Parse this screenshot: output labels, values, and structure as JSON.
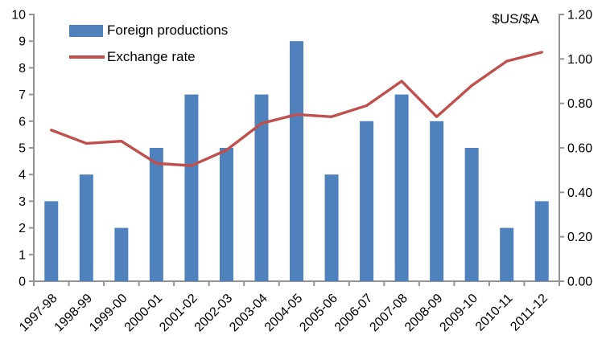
{
  "chart": {
    "legend": {
      "bar_label": "Foreign productions",
      "line_label": "Exchange rate"
    },
    "right_axis_unit": "$US/$A"
  },
  "chart_data": {
    "type": "bar+line",
    "title": "",
    "xlabel": "",
    "ylabel_left": "",
    "ylabel_right": "$US/$A",
    "grid": false,
    "legend_position": "top-left",
    "categories": [
      "1997-98",
      "1998-99",
      "1999-00",
      "2000-01",
      "2001-02",
      "2002-03",
      "2003-04",
      "2004-05",
      "2005-06",
      "2006-07",
      "2007-08",
      "2008-09",
      "2009-10",
      "2010-11",
      "2011-12"
    ],
    "series": [
      {
        "name": "Foreign productions",
        "type": "bar",
        "axis": "left",
        "color": "#4F81BD",
        "values": [
          3,
          4,
          2,
          5,
          7,
          5,
          7,
          9,
          4,
          6,
          7,
          6,
          5,
          2,
          3
        ]
      },
      {
        "name": "Exchange rate",
        "type": "line",
        "axis": "right",
        "color": "#C0504D",
        "values": [
          0.68,
          0.62,
          0.63,
          0.53,
          0.52,
          0.59,
          0.71,
          0.75,
          0.74,
          0.79,
          0.9,
          0.74,
          0.88,
          0.99,
          1.03
        ]
      }
    ],
    "left_axis": {
      "min": 0,
      "max": 10,
      "step": 1,
      "tick_labels": [
        "0",
        "1",
        "2",
        "3",
        "4",
        "5",
        "6",
        "7",
        "8",
        "9",
        "10"
      ]
    },
    "right_axis": {
      "min": 0,
      "max": 1.2,
      "step": 0.2,
      "tick_labels": [
        "0.00",
        "0.20",
        "0.40",
        "0.60",
        "0.80",
        "1.00",
        "1.20"
      ]
    },
    "axis_color": "#949494",
    "text_color": "#000000"
  }
}
